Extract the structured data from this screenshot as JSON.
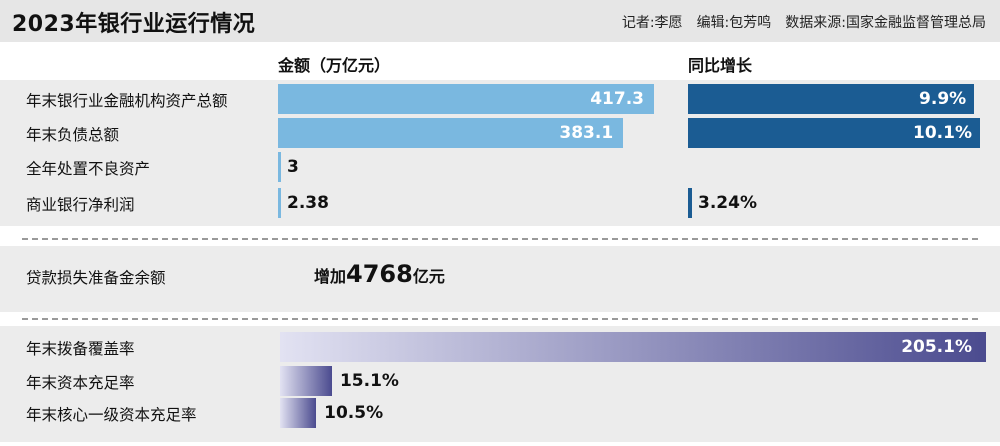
{
  "header": {
    "title": "2023年银行业运行情况",
    "reporter": "记者:李愿",
    "editor": "编辑:包芳鸣",
    "source": "数据来源:国家金融监督管理总局"
  },
  "columns": {
    "amount": "金额（万亿元）",
    "growth": "同比增长"
  },
  "colors": {
    "amount_bar": "#7ab8e0",
    "growth_bar": "#1b5c93",
    "ratio_start": "#e2e2f2",
    "ratio_end": "#4b4b8f",
    "panel_bg": "#ececec"
  },
  "middle": {
    "label": "贷款损失准备金余额",
    "prefix": "增加",
    "number": "4768",
    "suffix": "亿元"
  },
  "chart_data": [
    {
      "type": "bar",
      "orientation": "horizontal",
      "categories": [
        "年末银行业金融机构资产总额",
        "年末负债总额",
        "全年处置不良资产",
        "商业银行净利润"
      ],
      "series": [
        {
          "name": "金额（万亿元）",
          "values": [
            417.3,
            383.1,
            3,
            2.38
          ],
          "labels": [
            "417.3",
            "383.1",
            "3",
            "2.38"
          ]
        },
        {
          "name": "同比增长",
          "values": [
            9.9,
            10.1,
            null,
            3.24
          ],
          "labels": [
            "9.9%",
            "10.1%",
            "",
            "3.24%"
          ]
        }
      ]
    },
    {
      "type": "bar",
      "orientation": "horizontal",
      "categories": [
        "年末拨备覆盖率",
        "年末资本充足率",
        "年末核心一级资本充足率"
      ],
      "series": [
        {
          "values": [
            205.1,
            15.1,
            10.5
          ],
          "labels": [
            "205.1%",
            "15.1%",
            "10.5%"
          ]
        }
      ]
    }
  ]
}
